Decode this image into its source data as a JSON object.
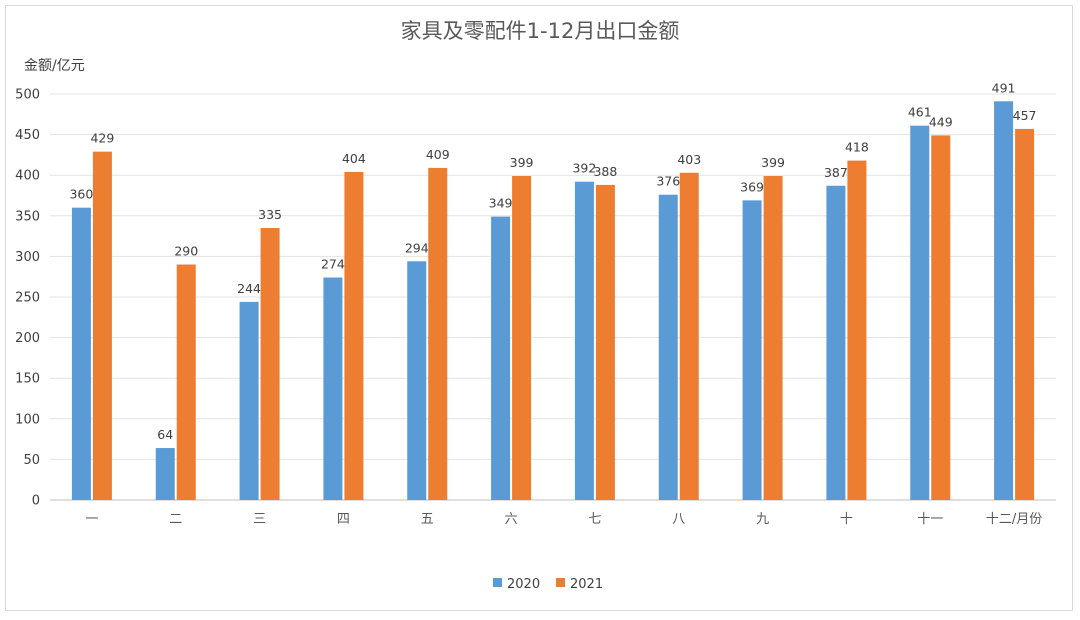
{
  "chart_data": {
    "type": "bar",
    "title": "家具及零配件1-12月出口金额",
    "ylabel": "金额/亿元",
    "categories": [
      "一",
      "二",
      "三",
      "四",
      "五",
      "六",
      "七",
      "八",
      "九",
      "十",
      "十一",
      "十二/月份"
    ],
    "series": [
      {
        "name": "2020",
        "color": "#5b9bd5",
        "values": [
          360,
          64,
          244,
          274,
          294,
          349,
          392,
          376,
          369,
          387,
          461,
          491
        ]
      },
      {
        "name": "2021",
        "color": "#ed7d31",
        "values": [
          429,
          290,
          335,
          404,
          409,
          399,
          388,
          403,
          399,
          418,
          449,
          457
        ]
      }
    ],
    "ylim": [
      0,
      500
    ],
    "yticks": [
      0,
      50,
      100,
      150,
      200,
      250,
      300,
      350,
      400,
      450,
      500
    ],
    "grid": true,
    "legend_position": "bottom"
  }
}
